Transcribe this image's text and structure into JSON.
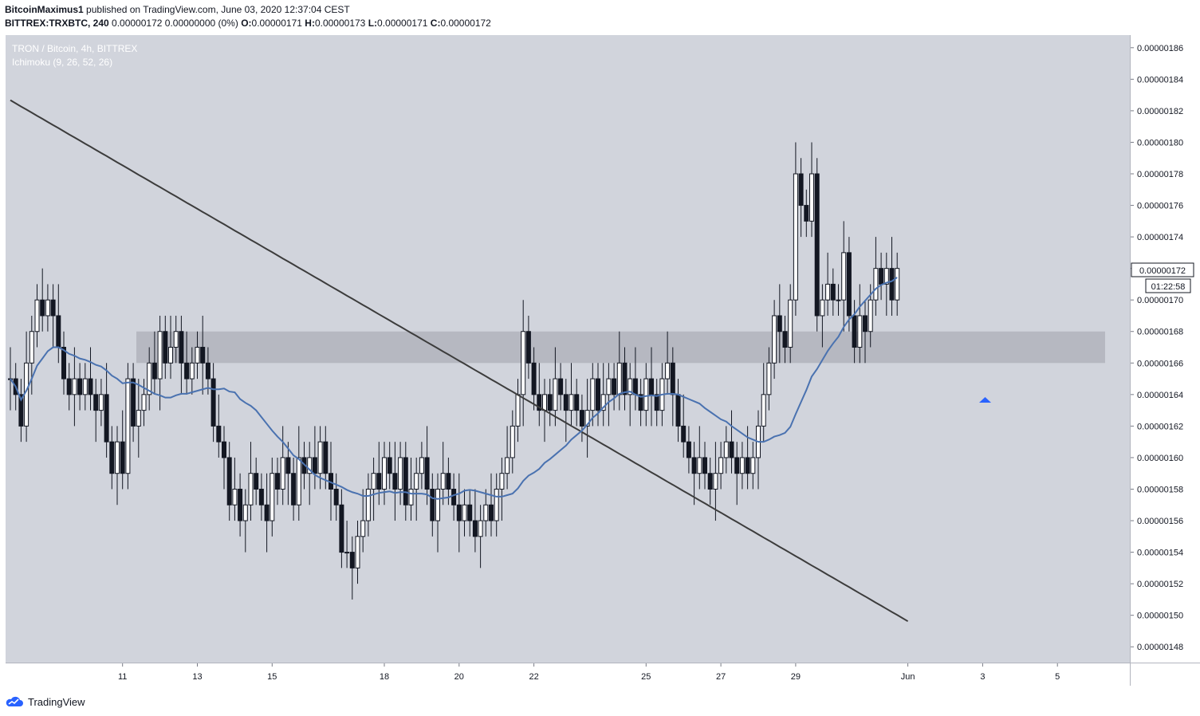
{
  "header": {
    "author": "BitcoinMaximus1",
    "published_text": "published on TradingView.com, June 03, 2020 12:37:04 CEST",
    "symbol": "BITTREX:TRXBTC, 240",
    "change": "0.00000172 0.00000000 (0%)",
    "o_label": "O:",
    "o_value": "0.00000171",
    "h_label": "H:",
    "h_value": "0.00000173",
    "l_label": "L:",
    "l_value": "0.00000171",
    "c_label": "C:",
    "c_value": "0.00000172"
  },
  "legend": {
    "title": "TRON / Bitcoin, 4h, BITTREX",
    "indicator": "Ichimoku (9, 26, 52, 26)"
  },
  "colors": {
    "plot_bg": "#d1d4dc",
    "zone": "#b2b5be",
    "ma_long": "#3c3c3c",
    "ma_short": "#4a72b0",
    "marker": "#2962ff",
    "candle_up": "#ffffff",
    "candle_down": "#131722"
  },
  "footer": {
    "brand": "TradingView",
    "icon": "tradingview-cloud-icon"
  },
  "chart_data": {
    "type": "candlestick",
    "title": "TRON / Bitcoin, 4h, BITTREX",
    "ylim": [
      1.47e-06,
      1.868e-06
    ],
    "y_ticks": [
      "0.00000148",
      "0.00000150",
      "0.00000152",
      "0.00000154",
      "0.00000156",
      "0.00000158",
      "0.00000160",
      "0.00000162",
      "0.00000164",
      "0.00000166",
      "0.00000168",
      "0.00000170",
      "0.00000172",
      "0.00000174",
      "0.00000176",
      "0.00000178",
      "0.00000180",
      "0.00000182",
      "0.00000184",
      "0.00000186"
    ],
    "x_ticks": [
      {
        "label": "11",
        "bar": 21
      },
      {
        "label": "13",
        "bar": 35
      },
      {
        "label": "15",
        "bar": 49
      },
      {
        "label": "18",
        "bar": 70
      },
      {
        "label": "20",
        "bar": 84
      },
      {
        "label": "22",
        "bar": 98
      },
      {
        "label": "25",
        "bar": 119
      },
      {
        "label": "27",
        "bar": 133
      },
      {
        "label": "29",
        "bar": 147
      },
      {
        "label": "Jun",
        "bar": 168
      },
      {
        "label": "3",
        "bar": 182
      },
      {
        "label": "5",
        "bar": 196
      }
    ],
    "current_price": "0.00000172",
    "countdown": "01:22:58",
    "resistance_zone": {
      "from": 1.66e-06,
      "to": 1.68e-06
    },
    "close": [
      165,
      164,
      162,
      166,
      168,
      170,
      169,
      170,
      169,
      167,
      165,
      164,
      165,
      164,
      165,
      164,
      163,
      164,
      161,
      159,
      161,
      159,
      165,
      162,
      163,
      164,
      166,
      165,
      168,
      166,
      167,
      168,
      166,
      165,
      166,
      167,
      166,
      165,
      162,
      161,
      160,
      157,
      158,
      156,
      157,
      159,
      158,
      157,
      156,
      159,
      158,
      160,
      159,
      157,
      160,
      159,
      160,
      159,
      161,
      159,
      158,
      157,
      154,
      154,
      153,
      155,
      156,
      158,
      159,
      158,
      160,
      159,
      158,
      160,
      157,
      158,
      159,
      160,
      158,
      156,
      158,
      159,
      158,
      157,
      156,
      157,
      156,
      155,
      156,
      157,
      156,
      158,
      159,
      160,
      162,
      164,
      168,
      166,
      164,
      163,
      164,
      163,
      165,
      164,
      163,
      164,
      163,
      162,
      163,
      165,
      163,
      164,
      165,
      164,
      166,
      164,
      165,
      164,
      163,
      165,
      164,
      163,
      165,
      166,
      164,
      162,
      161,
      160,
      159,
      160,
      159,
      158,
      159,
      160,
      161,
      160,
      159,
      160,
      159,
      160,
      162,
      164,
      166,
      169,
      168,
      167,
      170,
      178,
      176,
      175,
      178,
      169,
      170,
      171,
      170,
      170,
      173,
      169,
      167,
      169,
      168,
      170,
      172,
      171,
      172,
      170,
      172
    ],
    "ma_long": [
      1.8267,
      1.8247,
      1.8227,
      1.8208,
      1.8188,
      1.8168,
      1.8149,
      1.8129,
      1.8109,
      1.809,
      1.807,
      1.805,
      1.8031,
      1.8011,
      1.7991,
      1.7972,
      1.7952,
      1.7932,
      1.7913,
      1.7893,
      1.7873,
      1.7854,
      1.7834,
      1.7814,
      1.7794,
      1.7775,
      1.7755,
      1.7735,
      1.7716,
      1.7696,
      1.7676,
      1.7657,
      1.7637,
      1.7617,
      1.7598,
      1.7578,
      1.7558,
      1.7539,
      1.7519,
      1.7499,
      1.748,
      1.746,
      1.744,
      1.7421,
      1.7401,
      1.7381,
      1.7362,
      1.7342,
      1.7322,
      1.7303,
      1.7283,
      1.7263,
      1.7244,
      1.7224,
      1.7204,
      1.7185,
      1.7165,
      1.7145,
      1.7126,
      1.7106,
      1.7086,
      1.7067,
      1.7047,
      1.7027,
      1.7008,
      1.6988,
      1.6968,
      1.6949,
      1.6929,
      1.6909,
      1.689,
      1.687,
      1.685,
      1.6831,
      1.6811,
      1.6791,
      1.6772,
      1.6752,
      1.6732,
      1.6713,
      1.6693,
      1.6673,
      1.6654,
      1.6634,
      1.6614,
      1.6595,
      1.6575,
      1.6555,
      1.6536,
      1.6516,
      1.6496,
      1.6477,
      1.6457,
      1.6437,
      1.6418,
      1.6398,
      1.6378,
      1.6359,
      1.6339,
      1.6319,
      1.63,
      1.628,
      1.626,
      1.6241,
      1.6221,
      1.6201,
      1.6182,
      1.6162,
      1.6142,
      1.6123,
      1.6103,
      1.6083,
      1.6064,
      1.6044,
      1.6024,
      1.6005,
      1.5985,
      1.5965,
      1.5946,
      1.5926,
      1.5906,
      1.5887,
      1.5867,
      1.5847,
      1.5828,
      1.5808,
      1.5788,
      1.5769,
      1.5749,
      1.5729,
      1.571,
      1.569,
      1.567,
      1.5651,
      1.5631,
      1.5611,
      1.5592,
      1.5572,
      1.5552,
      1.5533,
      1.5513,
      1.5493,
      1.5474,
      1.5454,
      1.5434,
      1.5415,
      1.5395,
      1.5375,
      1.5356,
      1.5336,
      1.5316,
      1.5297,
      1.5277,
      1.5257,
      1.5238,
      1.5218,
      1.5198,
      1.5179,
      1.5159,
      1.5139,
      1.512,
      1.51,
      1.508,
      1.5061,
      1.5041,
      1.5021,
      1.5002,
      1.4982,
      1.4962
    ],
    "ma_short": []
  }
}
